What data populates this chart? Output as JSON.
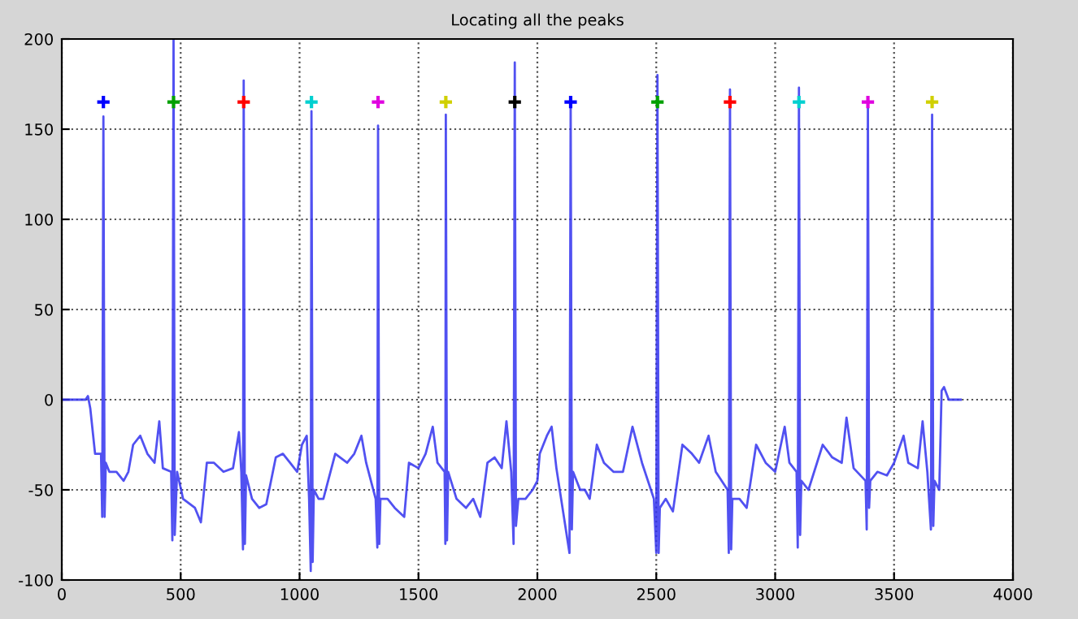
{
  "chart_data": {
    "type": "line",
    "title": "Locating all the peaks",
    "xlim": [
      0,
      4000
    ],
    "xticks": [
      0,
      500,
      1000,
      1500,
      2000,
      2500,
      3000,
      3500,
      4000
    ],
    "ylim": [
      -100,
      200
    ],
    "yticks": [
      -100,
      -50,
      0,
      50,
      100,
      150,
      200
    ],
    "grid": true,
    "legend": false,
    "series": [
      {
        "color": "#3333ee",
        "line_style": "solid",
        "marker": "none",
        "x": [
          0,
          100,
          110,
          120,
          140,
          165,
          170,
          175,
          180,
          185,
          200,
          230,
          260,
          280,
          300,
          330,
          360,
          390,
          410,
          425,
          460,
          465,
          470,
          475,
          485,
          510,
          560,
          585,
          610,
          640,
          680,
          720,
          745,
          755,
          762,
          765,
          770,
          775,
          800,
          830,
          860,
          900,
          930,
          960,
          990,
          1010,
          1030,
          1040,
          1047,
          1050,
          1055,
          1060,
          1080,
          1100,
          1150,
          1200,
          1230,
          1260,
          1280,
          1320,
          1327,
          1330,
          1335,
          1340,
          1370,
          1400,
          1440,
          1460,
          1500,
          1530,
          1560,
          1580,
          1610,
          1613,
          1615,
          1620,
          1625,
          1660,
          1700,
          1730,
          1760,
          1790,
          1820,
          1850,
          1870,
          1890,
          1900,
          1905,
          1910,
          1920,
          1950,
          1980,
          2000,
          2010,
          2040,
          2060,
          2080,
          2135,
          2140,
          2145,
          2150,
          2180,
          2200,
          2220,
          2250,
          2280,
          2320,
          2360,
          2400,
          2440,
          2490,
          2500,
          2505,
          2510,
          2515,
          2540,
          2570,
          2610,
          2650,
          2680,
          2720,
          2750,
          2800,
          2805,
          2810,
          2815,
          2820,
          2850,
          2880,
          2920,
          2960,
          3000,
          3040,
          3060,
          3090,
          3095,
          3100,
          3105,
          3110,
          3140,
          3200,
          3240,
          3280,
          3300,
          3330,
          3380,
          3385,
          3390,
          3395,
          3400,
          3430,
          3470,
          3500,
          3540,
          3560,
          3600,
          3620,
          3640,
          3655,
          3660,
          3665,
          3670,
          3690,
          3700,
          3710,
          3730,
          3780
        ],
        "values": [
          0,
          0,
          2,
          -5,
          -30,
          -30,
          -65,
          157,
          -65,
          -35,
          -40,
          -40,
          -45,
          -40,
          -25,
          -20,
          -30,
          -35,
          -12,
          -38,
          -40,
          -78,
          200,
          -75,
          -40,
          -55,
          -60,
          -68,
          -35,
          -35,
          -40,
          -38,
          -18,
          -40,
          -83,
          177,
          -80,
          -42,
          -55,
          -60,
          -58,
          -32,
          -30,
          -35,
          -40,
          -25,
          -20,
          -55,
          -95,
          160,
          -90,
          -50,
          -55,
          -55,
          -30,
          -35,
          -30,
          -20,
          -35,
          -55,
          -82,
          152,
          -80,
          -55,
          -55,
          -60,
          -65,
          -35,
          -38,
          -30,
          -15,
          -35,
          -40,
          -80,
          158,
          -78,
          -40,
          -55,
          -60,
          -55,
          -65,
          -35,
          -32,
          -38,
          -12,
          -40,
          -80,
          187,
          -70,
          -55,
          -55,
          -50,
          -45,
          -30,
          -20,
          -15,
          -38,
          -85,
          165,
          -72,
          -40,
          -50,
          -50,
          -55,
          -25,
          -35,
          -40,
          -40,
          -15,
          -35,
          -55,
          -85,
          180,
          -85,
          -60,
          -55,
          -62,
          -25,
          -30,
          -35,
          -20,
          -40,
          -50,
          -85,
          172,
          -83,
          -55,
          -55,
          -60,
          -25,
          -35,
          -40,
          -15,
          -35,
          -40,
          -82,
          173,
          -75,
          -45,
          -50,
          -25,
          -32,
          -35,
          -10,
          -38,
          -45,
          -72,
          163,
          -60,
          -45,
          -40,
          -42,
          -35,
          -20,
          -35,
          -38,
          -12,
          -40,
          -72,
          158,
          -70,
          -45,
          -50,
          5,
          7,
          0,
          0
        ]
      },
      {
        "type": "scatter",
        "marker": "cross",
        "x": [
          175,
          470,
          765,
          1050,
          1330,
          1615,
          1905,
          2140,
          2505,
          2810,
          3100,
          3390,
          3660
        ],
        "values": [
          165,
          165,
          165,
          165,
          165,
          165,
          165,
          165,
          165,
          165,
          165,
          165,
          165
        ],
        "colors": [
          "#0000ff",
          "#00a000",
          "#ff0000",
          "#00d0d0",
          "#e000e0",
          "#d0d000",
          "#000000",
          "#0000ff",
          "#00a000",
          "#ff0000",
          "#00d0d0",
          "#e000e0",
          "#d0d000"
        ]
      }
    ]
  }
}
